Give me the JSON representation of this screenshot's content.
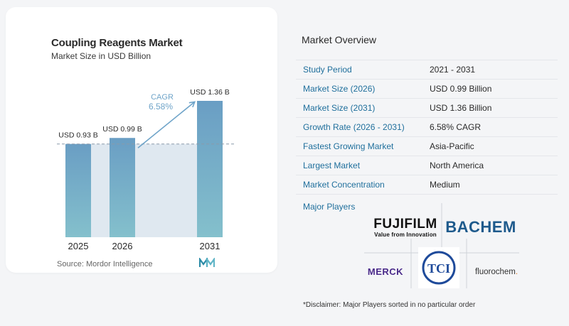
{
  "chart_data": {
    "type": "bar",
    "title": "Coupling Reagents Market",
    "subtitle": "Market Size in USD Billion",
    "categories": [
      "2025",
      "2026",
      "2031"
    ],
    "values": [
      0.93,
      0.99,
      1.36
    ],
    "data_labels": [
      "USD 0.93 B",
      "USD 0.99 B",
      "USD 1.36 B"
    ],
    "cagr_label": "CAGR",
    "cagr_value": "6.58%",
    "ylim": [
      0,
      1.36
    ],
    "colors": {
      "bar": "#6a9ec4",
      "bar_bottom": "#84c0cc",
      "shade": "#dfe8f0",
      "arrow": "#6fa4c9",
      "cagr_text": "#6fa4c9"
    }
  },
  "source": "Source:  Mordor Intelligence",
  "overview": {
    "title": "Market Overview",
    "rows": [
      {
        "label": "Study Period",
        "value": "2021 - 2031"
      },
      {
        "label": "Market Size (2026)",
        "value": "USD 0.99 Billion"
      },
      {
        "label": "Market Size (2031)",
        "value": "USD 1.36 Billion"
      },
      {
        "label": "Growth Rate (2026 - 2031)",
        "value": "6.58% CAGR"
      },
      {
        "label": "Fastest Growing Market",
        "value": "Asia-Pacific"
      },
      {
        "label": "Largest Market",
        "value": "North America"
      },
      {
        "label": "Market Concentration",
        "value": "Medium"
      }
    ]
  },
  "players": {
    "label": "Major Players",
    "fujifilm": {
      "name": "FUJIFILM",
      "tagline": "Value from Innovation"
    },
    "bachem": "BACHEM",
    "merck": "MERCK",
    "tci": "TCI",
    "fluorochem": {
      "name": "fluorochem",
      "dot": "."
    }
  },
  "disclaimer": "*Disclaimer: Major Players sorted in no particular order"
}
